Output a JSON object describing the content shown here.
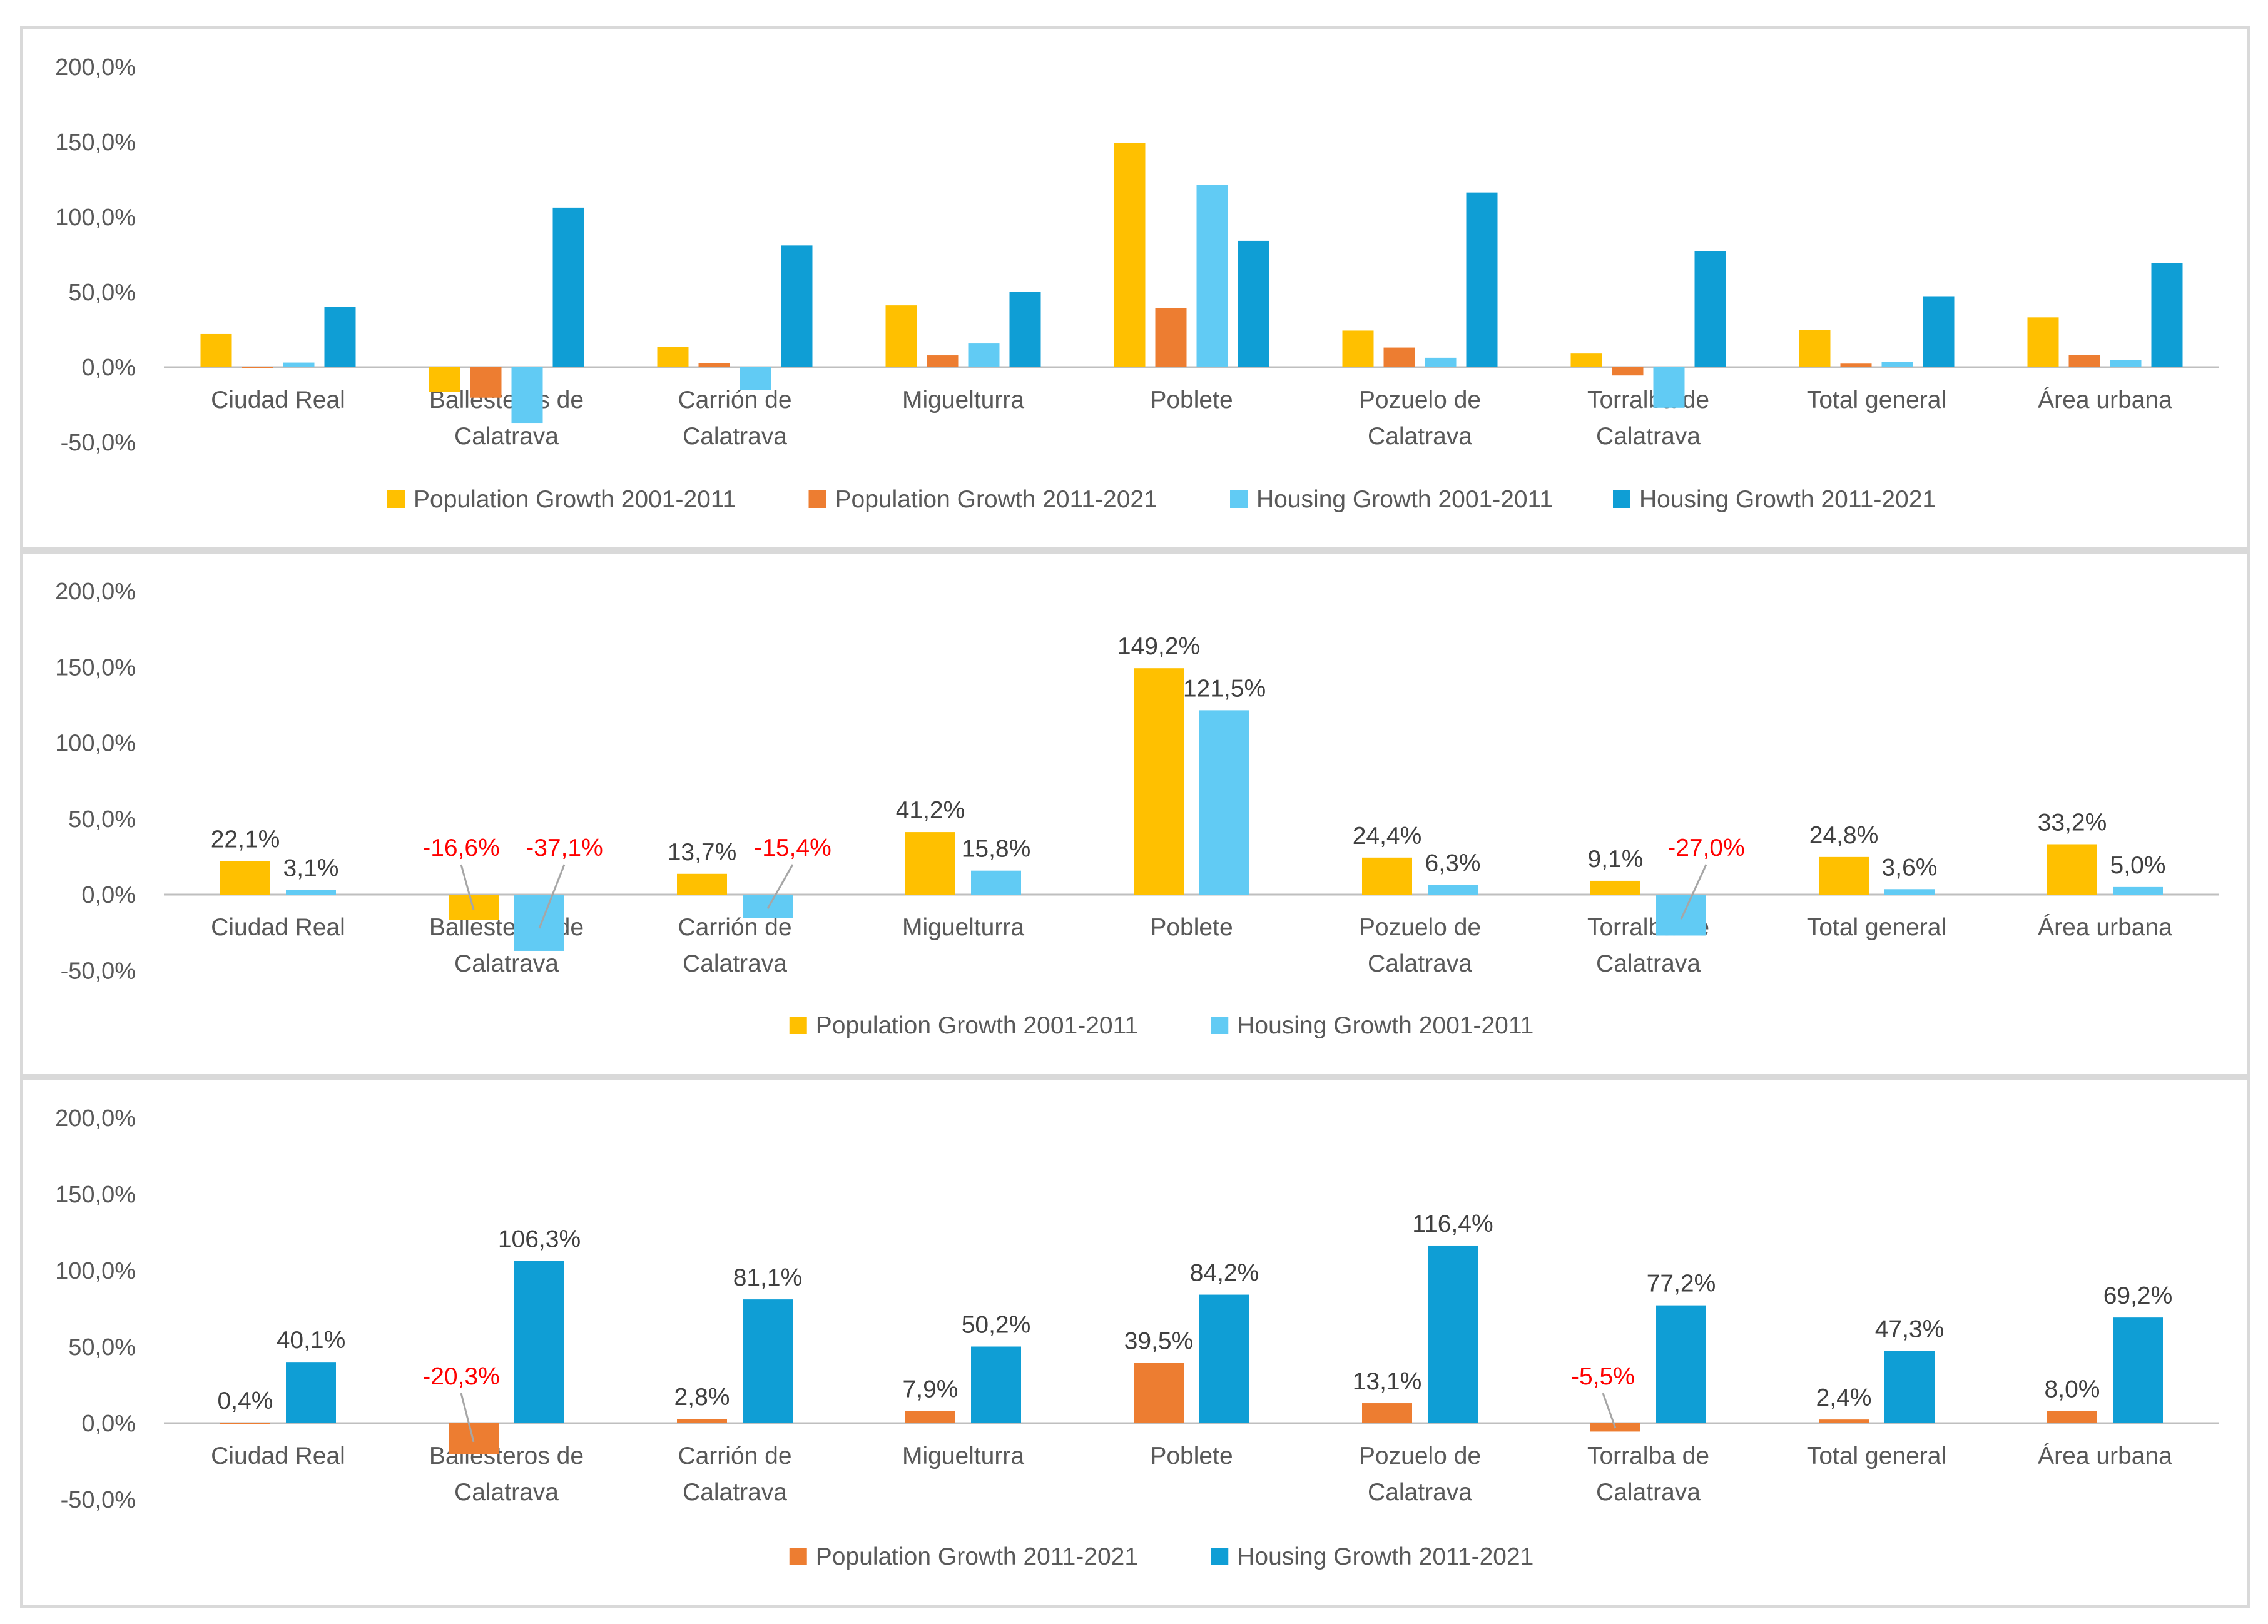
{
  "chart_data": [
    {
      "type": "bar",
      "categories": [
        [
          "Ciudad Real"
        ],
        [
          "Ballesteros de",
          "Calatrava"
        ],
        [
          "Carrión de",
          "Calatrava"
        ],
        [
          "Miguelturra"
        ],
        [
          "Poblete"
        ],
        [
          "Pozuelo de",
          "Calatrava"
        ],
        [
          "Torralba de",
          "Calatrava"
        ],
        [
          "Total general"
        ],
        [
          "Área urbana"
        ]
      ],
      "series": [
        {
          "name": "Population Growth 2001-2011",
          "color": "#FFC000",
          "values": [
            22.1,
            -16.6,
            13.7,
            41.2,
            149.2,
            24.4,
            9.1,
            24.8,
            33.2
          ]
        },
        {
          "name": "Population Growth 2011-2021",
          "color": "#ED7D31",
          "values": [
            0.4,
            -20.3,
            2.8,
            7.9,
            39.5,
            13.1,
            -5.5,
            2.4,
            8.0
          ]
        },
        {
          "name": "Housing Growth 2001-2011",
          "color": "#61CBF4",
          "values": [
            3.1,
            -37.1,
            -15.4,
            15.8,
            121.5,
            6.3,
            -27.0,
            3.6,
            5.0
          ]
        },
        {
          "name": "Housing Growth 2011-2021",
          "color": "#0F9ED5",
          "values": [
            40.1,
            106.3,
            81.1,
            50.2,
            84.2,
            116.4,
            77.2,
            47.3,
            69.2
          ]
        }
      ],
      "ylim": [
        -50,
        200
      ],
      "yticks": [
        "200,0%",
        "150,0%",
        "100,0%",
        "50,0%",
        "0,0%",
        "-50,0%"
      ],
      "data_labels": false,
      "legend": "bottom"
    },
    {
      "type": "bar",
      "categories": [
        [
          "Ciudad Real"
        ],
        [
          "Ballesteros de",
          "Calatrava"
        ],
        [
          "Carrión de",
          "Calatrava"
        ],
        [
          "Miguelturra"
        ],
        [
          "Poblete"
        ],
        [
          "Pozuelo de",
          "Calatrava"
        ],
        [
          "Torralba de",
          "Calatrava"
        ],
        [
          "Total general"
        ],
        [
          "Área urbana"
        ]
      ],
      "series": [
        {
          "name": "Population Growth 2001-2011",
          "color": "#FFC000",
          "values": [
            22.1,
            -16.6,
            13.7,
            41.2,
            149.2,
            24.4,
            9.1,
            24.8,
            33.2
          ],
          "labels": [
            "22,1%",
            "-16,6%",
            "13,7%",
            "41,2%",
            "149,2%",
            "24,4%",
            "9,1%",
            "24,8%",
            "33,2%"
          ]
        },
        {
          "name": "Housing Growth 2001-2011",
          "color": "#61CBF4",
          "values": [
            3.1,
            -37.1,
            -15.4,
            15.8,
            121.5,
            6.3,
            -27.0,
            3.6,
            5.0
          ],
          "labels": [
            "3,1%",
            "-37,1%",
            "-15,4%",
            "15,8%",
            "121,5%",
            "6,3%",
            "-27,0%",
            "3,6%",
            "5,0%"
          ]
        }
      ],
      "ylim": [
        -50,
        200
      ],
      "yticks": [
        "200,0%",
        "150,0%",
        "100,0%",
        "50,0%",
        "0,0%",
        "-50,0%"
      ],
      "data_labels": true,
      "negative_label_color": "#FF0000",
      "legend": "bottom"
    },
    {
      "type": "bar",
      "categories": [
        [
          "Ciudad Real"
        ],
        [
          "Ballesteros de",
          "Calatrava"
        ],
        [
          "Carrión de",
          "Calatrava"
        ],
        [
          "Miguelturra"
        ],
        [
          "Poblete"
        ],
        [
          "Pozuelo de",
          "Calatrava"
        ],
        [
          "Torralba de",
          "Calatrava"
        ],
        [
          "Total general"
        ],
        [
          "Área urbana"
        ]
      ],
      "series": [
        {
          "name": "Population Growth 2011-2021",
          "color": "#ED7D31",
          "values": [
            0.4,
            -20.3,
            2.8,
            7.9,
            39.5,
            13.1,
            -5.5,
            2.4,
            8.0
          ],
          "labels": [
            "0,4%",
            "-20,3%",
            "2,8%",
            "7,9%",
            "39,5%",
            "13,1%",
            "-5,5%",
            "2,4%",
            "8,0%"
          ]
        },
        {
          "name": "Housing Growth 2011-2021",
          "color": "#0F9ED5",
          "values": [
            40.1,
            106.3,
            81.1,
            50.2,
            84.2,
            116.4,
            77.2,
            47.3,
            69.2
          ],
          "labels": [
            "40,1%",
            "106,3%",
            "81,1%",
            "50,2%",
            "84,2%",
            "116,4%",
            "77,2%",
            "47,3%",
            "69,2%"
          ]
        }
      ],
      "ylim": [
        -50,
        200
      ],
      "yticks": [
        "200,0%",
        "150,0%",
        "100,0%",
        "50,0%",
        "0,0%",
        "-50,0%"
      ],
      "data_labels": true,
      "negative_label_color": "#FF0000",
      "legend": "bottom"
    }
  ]
}
